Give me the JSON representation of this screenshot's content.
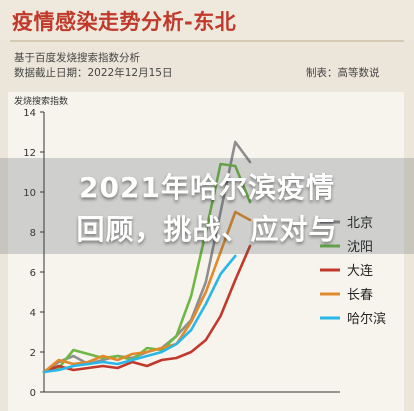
{
  "header": {
    "title": "疫情感染走势分析-东北",
    "source_line": "基于百度发烧搜索指数分析",
    "date_line": "数据截止日期：2022年12月15日",
    "maker_line": "制表：高等数说"
  },
  "overlay": {
    "line1": "2021年哈尔滨疫情",
    "line2": "回顾，挑战、应对与"
  },
  "chart_data": {
    "type": "line",
    "ylabel": "发烧搜索指数",
    "xlabel": "",
    "ylim": [
      0,
      14
    ],
    "yticks": [
      0,
      2,
      4,
      6,
      8,
      10,
      12,
      14
    ],
    "x": [
      1,
      2,
      3,
      4,
      5,
      6,
      7,
      8,
      9,
      10,
      11,
      12,
      13,
      14,
      15
    ],
    "grid": false,
    "legend_position": "right",
    "series": [
      {
        "name": "北京",
        "color": "#8e8e8e",
        "values": [
          1.0,
          1.5,
          1.8,
          1.4,
          1.6,
          1.8,
          1.7,
          2.0,
          2.2,
          2.8,
          3.6,
          5.5,
          9.0,
          12.5,
          11.5
        ]
      },
      {
        "name": "沈阳",
        "color": "#6fb845",
        "values": [
          1.0,
          1.2,
          2.1,
          1.9,
          1.7,
          1.8,
          1.6,
          2.2,
          2.1,
          2.8,
          4.8,
          8.0,
          11.4,
          11.3,
          9.5
        ]
      },
      {
        "name": "大连",
        "color": "#c0392b",
        "values": [
          1.0,
          1.3,
          1.1,
          1.2,
          1.3,
          1.2,
          1.5,
          1.3,
          1.6,
          1.7,
          2.0,
          2.6,
          3.8,
          5.6,
          7.3
        ]
      },
      {
        "name": "长春",
        "color": "#e08a2c",
        "values": [
          1.0,
          1.6,
          1.4,
          1.5,
          1.8,
          1.6,
          1.9,
          2.0,
          2.2,
          2.4,
          3.5,
          5.0,
          7.0,
          9.0,
          8.6
        ]
      },
      {
        "name": "哈尔滨",
        "color": "#2ab7e8",
        "values": [
          1.0,
          1.1,
          1.3,
          1.4,
          1.5,
          1.4,
          1.6,
          1.8,
          2.0,
          2.4,
          3.1,
          4.4,
          5.9,
          6.8,
          null
        ]
      }
    ]
  }
}
